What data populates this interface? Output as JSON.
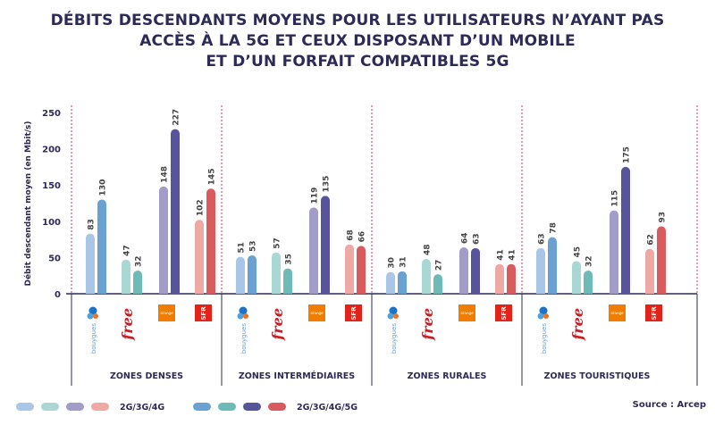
{
  "title_lines": [
    "DÉBITS DESCENDANTS MOYENS POUR LES UTILISATEURS N’AYANT PAS",
    "ACCÈS À LA 5G ET CEUX DISPOSANT D’UN MOBILE",
    "ET D’UN FORFAIT COMPATIBLES 5G"
  ],
  "source": "Source : Arcep",
  "operators": [
    {
      "name": "bouygues",
      "label": "bouygues"
    },
    {
      "name": "free",
      "label": "free"
    },
    {
      "name": "orange",
      "label": "orange"
    },
    {
      "name": "sfr",
      "label": "SFR"
    }
  ],
  "colors": {
    "bouygues_4g": "#a9c6e6",
    "bouygues_5g": "#6aa1d3",
    "free_4g": "#a9d7d3",
    "free_5g": "#6cbbb7",
    "orange_4g": "#a29cc9",
    "orange_5g": "#58549c",
    "sfr_4g": "#eea9a5",
    "sfr_5g": "#d95b5d",
    "axis": "#2c2a57",
    "divider": "#d6336c"
  },
  "chart_data": {
    "type": "bar",
    "ylabel": "Débit descendant moyen (en Mbit/s)",
    "ylim": [
      0,
      250
    ],
    "yticks": [
      0,
      50,
      100,
      150,
      200,
      250
    ],
    "zones": [
      "ZONES DENSES",
      "ZONES INTERMÉDIAIRES",
      "ZONES RURALES",
      "ZONES TOURISTIQUES"
    ],
    "series": [
      {
        "name": "2G/3G/4G",
        "operator_values": {
          "bouygues": [
            83,
            51,
            30,
            63
          ],
          "free": [
            47,
            57,
            48,
            45
          ],
          "orange": [
            148,
            119,
            64,
            115
          ],
          "sfr": [
            102,
            68,
            41,
            62
          ]
        }
      },
      {
        "name": "2G/3G/4G/5G",
        "operator_values": {
          "bouygues": [
            130,
            53,
            31,
            78
          ],
          "free": [
            32,
            35,
            27,
            32
          ],
          "orange": [
            227,
            135,
            63,
            175
          ],
          "sfr": [
            145,
            66,
            41,
            93
          ]
        }
      }
    ],
    "legend": [
      {
        "label": "2G/3G/4G",
        "colors": [
          "#a9c6e6",
          "#a9d7d3",
          "#a29cc9",
          "#eea9a5"
        ]
      },
      {
        "label": "2G/3G/4G/5G",
        "colors": [
          "#6aa1d3",
          "#6cbbb7",
          "#58549c",
          "#d95b5d"
        ]
      }
    ]
  }
}
